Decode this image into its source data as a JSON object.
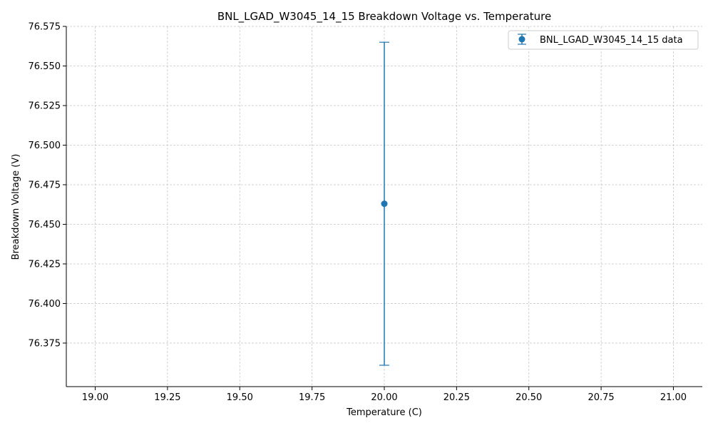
{
  "chart_data": {
    "type": "scatter",
    "title": "BNL_LGAD_W3045_14_15 Breakdown Voltage vs. Temperature",
    "xlabel": "Temperature (C)",
    "ylabel": "Breakdown Voltage (V)",
    "xlim": [
      18.9,
      21.1
    ],
    "ylim": [
      76.3475,
      76.575
    ],
    "xticks": [
      "19.00",
      "19.25",
      "19.50",
      "19.75",
      "20.00",
      "20.25",
      "20.50",
      "20.75",
      "21.00"
    ],
    "yticks": [
      "76.375",
      "76.400",
      "76.425",
      "76.450",
      "76.475",
      "76.500",
      "76.525",
      "76.550",
      "76.575"
    ],
    "grid": true,
    "legend_position": "top-right",
    "series": [
      {
        "name": "BNL_LGAD_W3045_14_15 data",
        "color": "#1f77b4",
        "x": [
          20.0
        ],
        "y": [
          76.463
        ],
        "yerr": [
          0.102
        ]
      }
    ]
  }
}
